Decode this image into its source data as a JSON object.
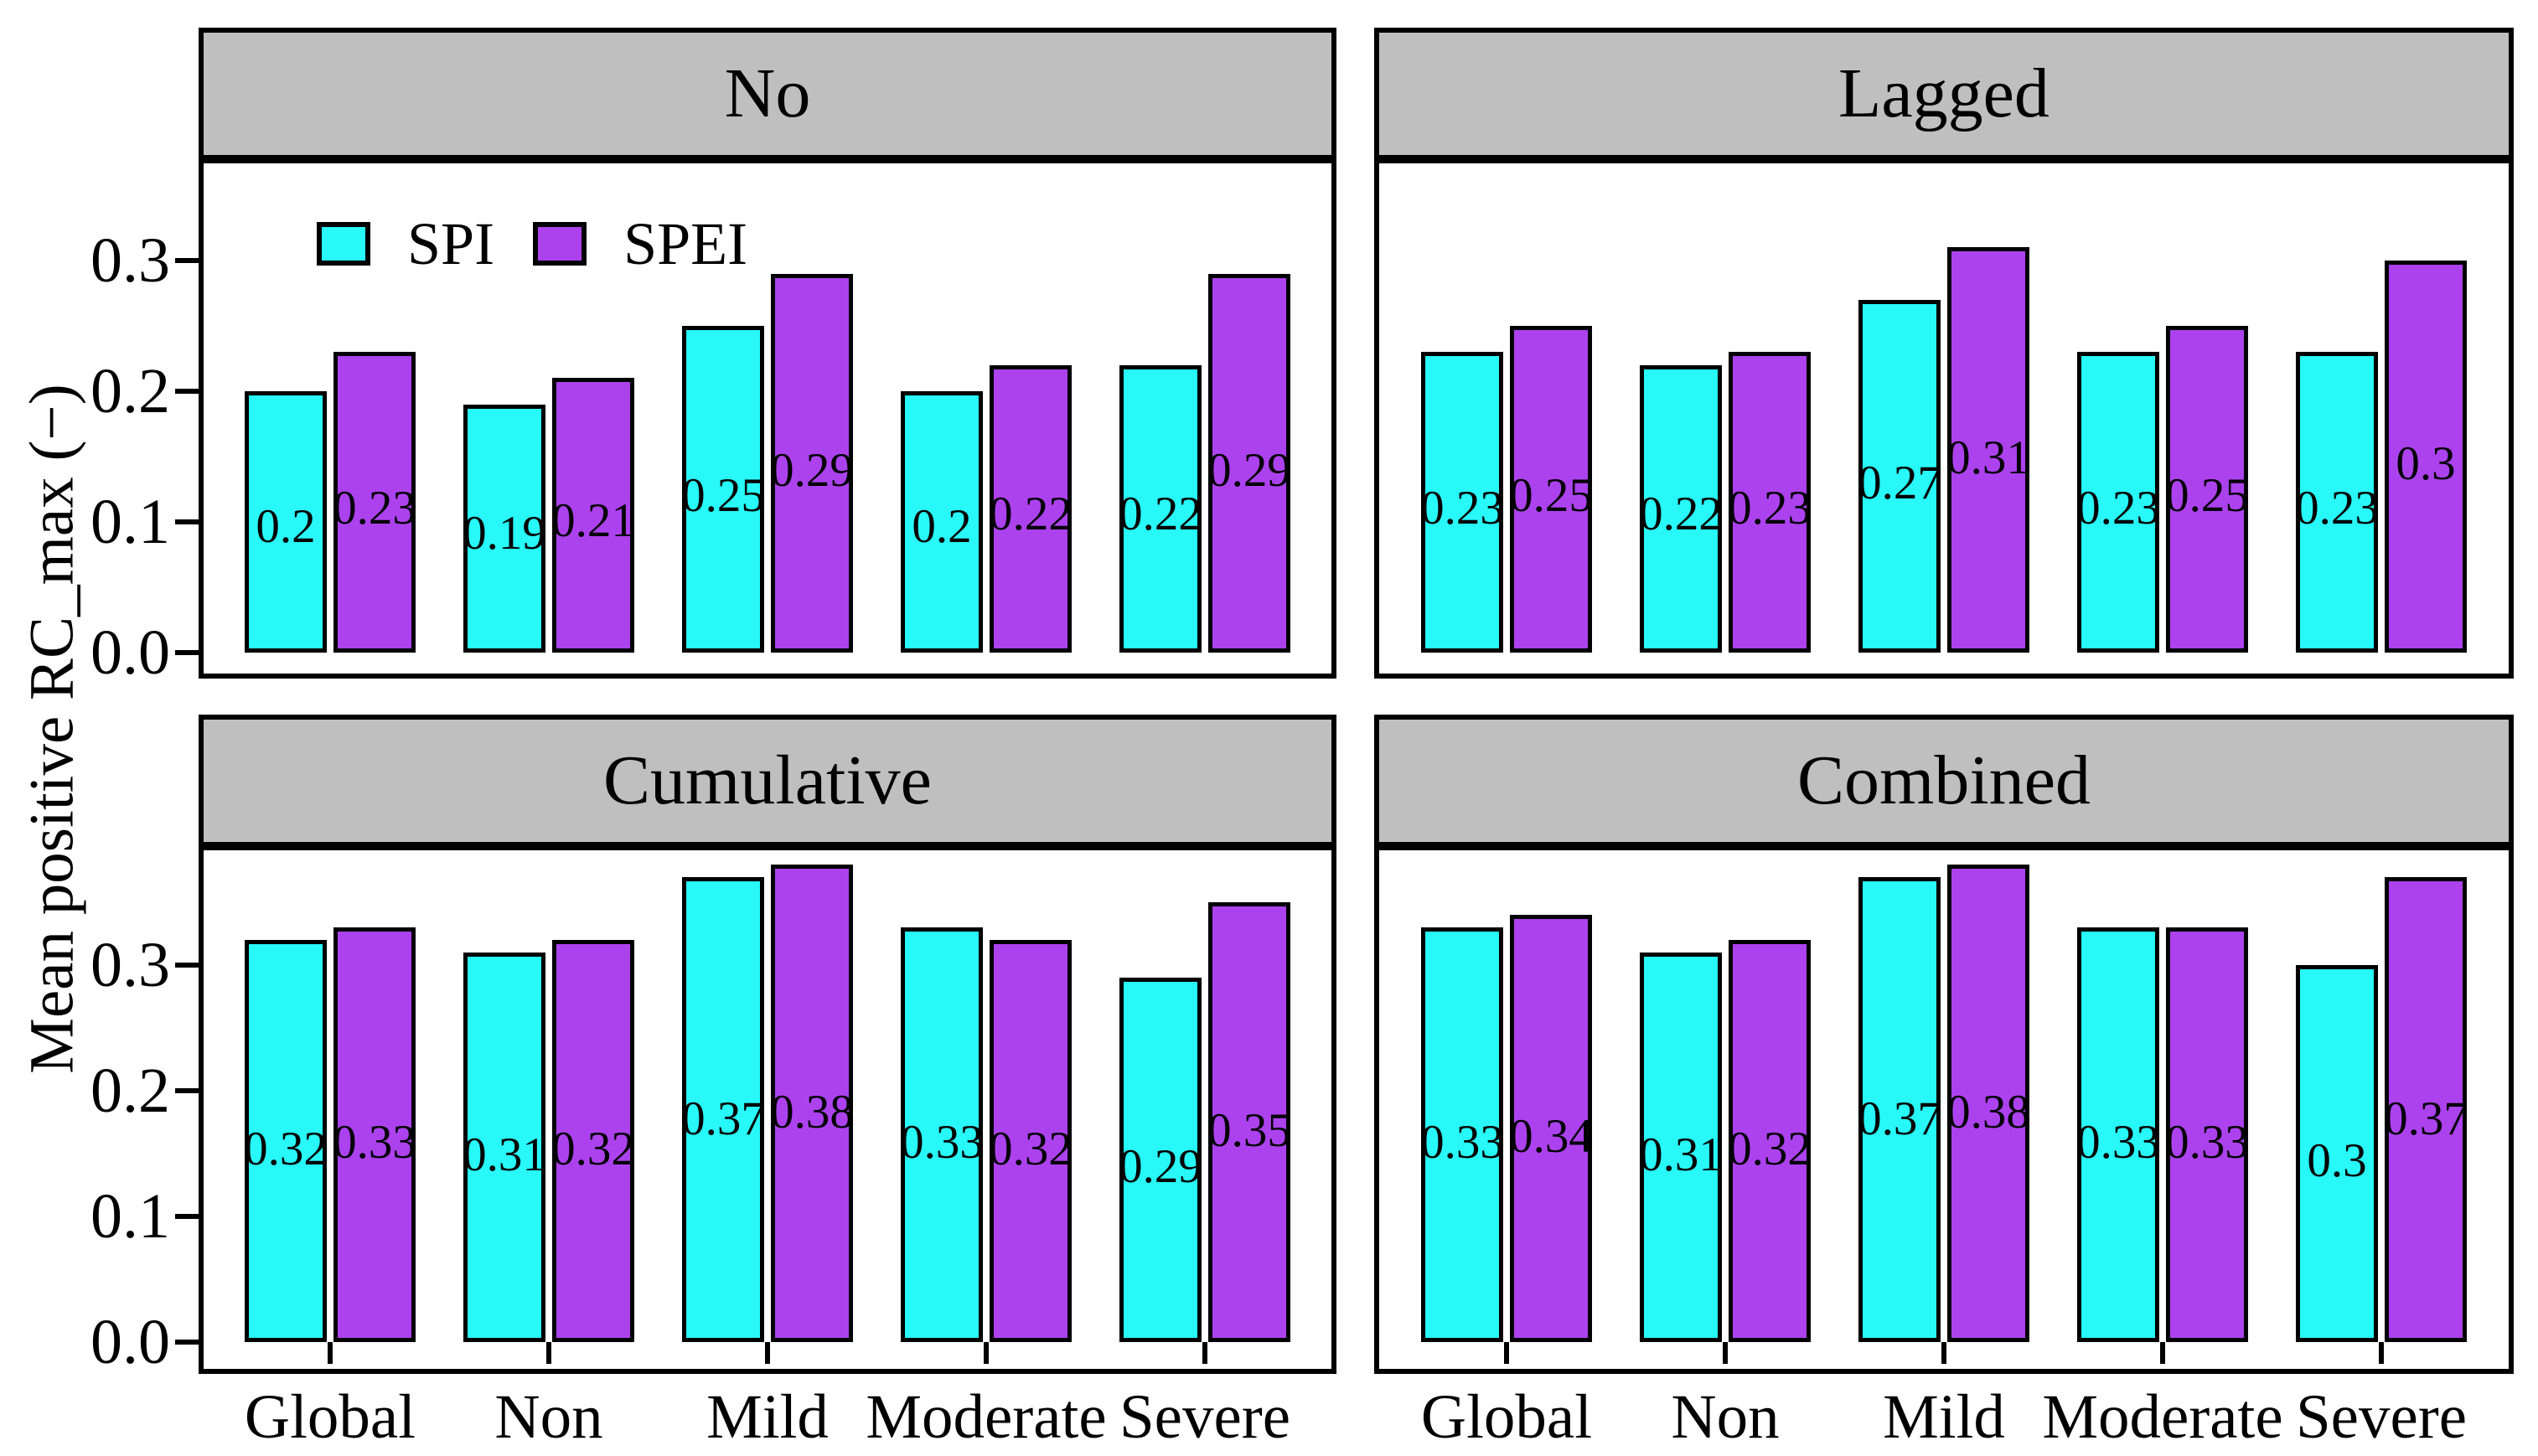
{
  "figure": {
    "ylabel": "Mean positive RC_max (−)",
    "ytick_labels": [
      "0.0",
      "0.1",
      "0.2",
      "0.3"
    ],
    "yticks": [
      0,
      0.1,
      0.2,
      0.3
    ],
    "categories": [
      "Global",
      "Non",
      "Mild",
      "Moderate",
      "Severe"
    ],
    "legend": [
      {
        "label": "SPI",
        "color": "#28F8F8"
      },
      {
        "label": "SPEI",
        "color": "#AC42EE"
      }
    ],
    "colors": {
      "spi": "#28F8F8",
      "spei": "#AC42EE",
      "header_bg": "#BFBFBF",
      "frame": "#000000",
      "background": "#FFFFFF"
    }
  },
  "chart_data": [
    {
      "type": "bar",
      "title": "No",
      "position": "top-left",
      "ylim": [
        0,
        0.4
      ],
      "grid": false,
      "legend_position": "top-left-inside",
      "categories": [
        "Global",
        "Non",
        "Mild",
        "Moderate",
        "Severe"
      ],
      "series": [
        {
          "name": "SPI",
          "values": [
            0.2,
            0.19,
            0.25,
            0.2,
            0.22
          ]
        },
        {
          "name": "SPEI",
          "values": [
            0.23,
            0.21,
            0.29,
            0.22,
            0.29
          ]
        }
      ]
    },
    {
      "type": "bar",
      "title": "Lagged",
      "position": "top-right",
      "ylim": [
        0,
        0.4
      ],
      "grid": false,
      "categories": [
        "Global",
        "Non",
        "Mild",
        "Moderate",
        "Severe"
      ],
      "series": [
        {
          "name": "SPI",
          "values": [
            0.23,
            0.22,
            0.27,
            0.23,
            0.23
          ]
        },
        {
          "name": "SPEI",
          "values": [
            0.25,
            0.23,
            0.31,
            0.25,
            0.3
          ]
        }
      ]
    },
    {
      "type": "bar",
      "title": "Cumulative",
      "position": "bottom-left",
      "ylim": [
        0,
        0.4
      ],
      "grid": false,
      "categories": [
        "Global",
        "Non",
        "Mild",
        "Moderate",
        "Severe"
      ],
      "series": [
        {
          "name": "SPI",
          "values": [
            0.32,
            0.31,
            0.37,
            0.33,
            0.29
          ]
        },
        {
          "name": "SPEI",
          "values": [
            0.33,
            0.32,
            0.38,
            0.32,
            0.35
          ]
        }
      ]
    },
    {
      "type": "bar",
      "title": "Combined",
      "position": "bottom-right",
      "ylim": [
        0,
        0.4
      ],
      "grid": false,
      "categories": [
        "Global",
        "Non",
        "Mild",
        "Moderate",
        "Severe"
      ],
      "series": [
        {
          "name": "SPI",
          "values": [
            0.33,
            0.31,
            0.37,
            0.33,
            0.3
          ]
        },
        {
          "name": "SPEI",
          "values": [
            0.34,
            0.32,
            0.38,
            0.33,
            0.37
          ]
        }
      ]
    }
  ]
}
